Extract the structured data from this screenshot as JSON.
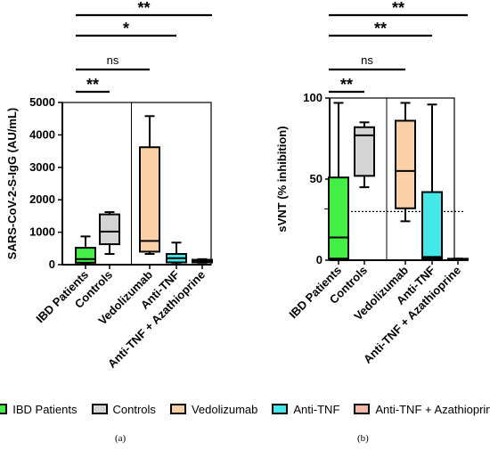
{
  "colors": {
    "ibd": "#44ee44",
    "controls": "#d4d4d4",
    "vedolizumab": "#fcd0a6",
    "anti_tnf": "#44e8e8",
    "combo": "#f7b7a7"
  },
  "legend": [
    {
      "label": "IBD Patients",
      "color": "#44ee44"
    },
    {
      "label": "Controls",
      "color": "#d4d4d4"
    },
    {
      "label": "Vedolizumab",
      "color": "#fcd0a6"
    },
    {
      "label": "Anti-TNF",
      "color": "#44e8e8"
    },
    {
      "label": "Anti-TNF + Azathioprine",
      "color": "#f7b7a7"
    }
  ],
  "panel_labels": {
    "a": "(a)",
    "b": "(b)"
  },
  "chart_data": [
    {
      "type": "box",
      "panel": "a",
      "ylabel": "SARS-CoV-2-S-IgG (AU/mL)",
      "ylim": [
        0,
        5000
      ],
      "yticks": [
        0,
        1000,
        2000,
        3000,
        4000,
        5000
      ],
      "categories": [
        "IBD Patients",
        "Controls",
        "Vedolizumab",
        "Anti-TNF",
        "Anti-TNF + Azathioprine"
      ],
      "boxes": [
        {
          "name": "IBD Patients",
          "color": "#44ee44",
          "min": 20,
          "q1": 60,
          "median": 170,
          "q3": 520,
          "max": 870
        },
        {
          "name": "Controls",
          "color": "#d4d4d4",
          "min": 330,
          "q1": 630,
          "median": 1020,
          "q3": 1550,
          "max": 1620
        },
        {
          "name": "Vedolizumab",
          "color": "#fcd0a6",
          "min": 330,
          "q1": 400,
          "median": 730,
          "q3": 3620,
          "max": 4580
        },
        {
          "name": "Anti-TNF",
          "color": "#44e8e8",
          "min": 10,
          "q1": 70,
          "median": 200,
          "q3": 330,
          "max": 680
        },
        {
          "name": "Anti-TNF + Azathioprine",
          "color": "#f7b7a7",
          "min": 60,
          "q1": 70,
          "median": 100,
          "q3": 150,
          "max": 170
        }
      ],
      "separator_after": 1,
      "significance": [
        {
          "from": 0,
          "to": 1,
          "label": "**"
        },
        {
          "from": 0,
          "to": 2,
          "label": "ns"
        },
        {
          "from": 0,
          "to": 3,
          "label": "*"
        },
        {
          "from": 0,
          "to": 4,
          "label": "**"
        }
      ]
    },
    {
      "type": "box",
      "panel": "b",
      "ylabel": "sVNT (% inhibition)",
      "ylim": [
        0,
        100
      ],
      "yticks": [
        0,
        50,
        100
      ],
      "threshold": 30,
      "categories": [
        "IBD Patients",
        "Controls",
        "Vedolizumab",
        "Anti-TNF",
        "Anti-TNF + Azathioprine"
      ],
      "boxes": [
        {
          "name": "IBD Patients",
          "color": "#44ee44",
          "min": 0,
          "q1": 1,
          "median": 14,
          "q3": 51,
          "max": 97
        },
        {
          "name": "Controls",
          "color": "#d4d4d4",
          "min": 45,
          "q1": 52,
          "median": 77,
          "q3": 82,
          "max": 85
        },
        {
          "name": "Vedolizumab",
          "color": "#fcd0a6",
          "min": 24,
          "q1": 32,
          "median": 55,
          "q3": 86,
          "max": 97
        },
        {
          "name": "Anti-TNF",
          "color": "#44e8e8",
          "min": 0,
          "q1": 1,
          "median": 2,
          "q3": 42,
          "max": 96
        },
        {
          "name": "Anti-TNF + Azathioprine",
          "color": "#f7b7a7",
          "min": 0,
          "q1": 0.3,
          "median": 0.6,
          "q3": 0.9,
          "max": 1
        }
      ],
      "separator_after": 1,
      "significance": [
        {
          "from": 0,
          "to": 1,
          "label": "**"
        },
        {
          "from": 0,
          "to": 2,
          "label": "ns"
        },
        {
          "from": 0,
          "to": 3,
          "label": "**"
        },
        {
          "from": 0,
          "to": 4,
          "label": "**"
        }
      ]
    }
  ]
}
